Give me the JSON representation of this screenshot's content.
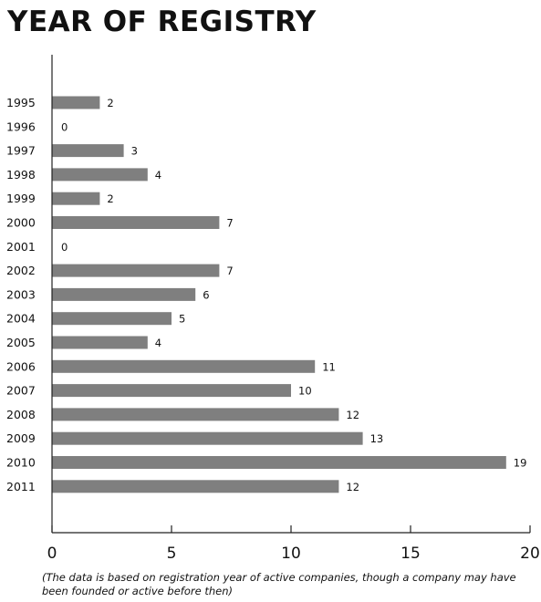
{
  "chart_data": {
    "type": "bar",
    "orientation": "horizontal",
    "title": "YEAR OF REGISTRY",
    "categories": [
      "1995",
      "1996",
      "1997",
      "1998",
      "1999",
      "2000",
      "2001",
      "2002",
      "2003",
      "2004",
      "2005",
      "2006",
      "2007",
      "2008",
      "2009",
      "2010",
      "2011"
    ],
    "values": [
      2,
      0,
      3,
      4,
      2,
      7,
      0,
      7,
      6,
      5,
      4,
      11,
      10,
      12,
      13,
      19,
      12
    ],
    "xlim": [
      0,
      20
    ],
    "xticks": [
      0,
      5,
      10,
      15,
      20
    ],
    "xlabel": "",
    "ylabel": "",
    "grid": false,
    "legend": "none",
    "data_labels": true,
    "bar_color": "#7f7f7f",
    "note": "(The data is based on registration year of active companies, though a company may have been founded or active before then)"
  }
}
